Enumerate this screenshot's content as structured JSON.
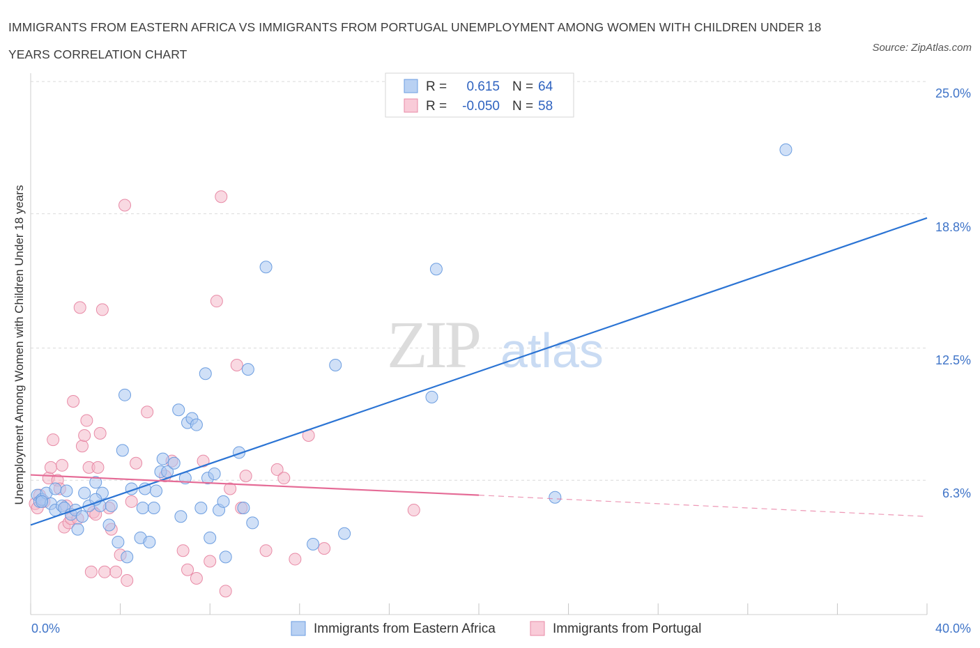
{
  "title": "IMMIGRANTS FROM EASTERN AFRICA VS IMMIGRANTS FROM PORTUGAL UNEMPLOYMENT AMONG WOMEN WITH CHILDREN UNDER 18 YEARS CORRELATION CHART",
  "source": "Source: ZipAtlas.com",
  "watermark": {
    "zip": "ZIP",
    "atlas": "atlas"
  },
  "colors": {
    "blue_fill": "#a9c6f0",
    "blue_stroke": "#6b9de0",
    "blue_line": "#2b74d4",
    "pink_fill": "#f4b9cb",
    "pink_stroke": "#e88aa6",
    "pink_line": "#e56b96",
    "grid": "#d9d9d9",
    "axis_text": "#3f74c8"
  },
  "legend": {
    "rows": [
      {
        "r_label": "R =",
        "r_value": "0.615",
        "n_label": "N =",
        "n_value": "64"
      },
      {
        "r_label": "R =",
        "r_value": "-0.050",
        "n_label": "N =",
        "n_value": "58"
      }
    ]
  },
  "chart_data": {
    "type": "scatter",
    "xlabel": "",
    "ylabel": "Unemployment Among Women with Children Under 18 years",
    "xlim": [
      0,
      40
    ],
    "ylim": [
      0,
      25
    ],
    "x_tick_labels": [
      "0.0%",
      "40.0%"
    ],
    "y_ticks": [
      6.3,
      12.5,
      18.8,
      25.0
    ],
    "y_tick_labels": [
      "6.3%",
      "12.5%",
      "18.8%",
      "25.0%"
    ],
    "grid": true,
    "legend_position": "top-center",
    "series": [
      {
        "name": "Immigrants from Eastern Africa",
        "points": [
          [
            0.3,
            5.6
          ],
          [
            0.4,
            5.3
          ],
          [
            0.5,
            5.4
          ],
          [
            0.7,
            5.7
          ],
          [
            0.9,
            5.2
          ],
          [
            1.1,
            5.9
          ],
          [
            1.1,
            4.9
          ],
          [
            1.4,
            5.1
          ],
          [
            1.6,
            5.8
          ],
          [
            1.5,
            5.0
          ],
          [
            1.8,
            4.7
          ],
          [
            2.0,
            4.9
          ],
          [
            2.1,
            4.0
          ],
          [
            2.3,
            4.6
          ],
          [
            2.4,
            5.7
          ],
          [
            2.6,
            5.1
          ],
          [
            2.9,
            6.2
          ],
          [
            3.1,
            5.1
          ],
          [
            3.2,
            5.7
          ],
          [
            3.5,
            4.2
          ],
          [
            3.6,
            5.1
          ],
          [
            3.9,
            3.4
          ],
          [
            4.1,
            7.7
          ],
          [
            4.2,
            10.3
          ],
          [
            4.3,
            2.7
          ],
          [
            4.5,
            5.9
          ],
          [
            4.9,
            3.6
          ],
          [
            5.0,
            5.0
          ],
          [
            5.1,
            5.9
          ],
          [
            5.3,
            3.4
          ],
          [
            5.5,
            5.0
          ],
          [
            5.6,
            5.8
          ],
          [
            5.8,
            6.7
          ],
          [
            5.9,
            7.3
          ],
          [
            6.1,
            6.7
          ],
          [
            6.4,
            7.1
          ],
          [
            6.6,
            9.6
          ],
          [
            6.7,
            4.6
          ],
          [
            6.9,
            6.4
          ],
          [
            7.0,
            9.0
          ],
          [
            7.2,
            9.2
          ],
          [
            7.4,
            8.9
          ],
          [
            7.6,
            5.0
          ],
          [
            7.8,
            11.3
          ],
          [
            7.9,
            6.4
          ],
          [
            8.0,
            3.6
          ],
          [
            8.2,
            6.6
          ],
          [
            8.4,
            4.9
          ],
          [
            8.6,
            5.3
          ],
          [
            8.7,
            2.7
          ],
          [
            9.3,
            7.6
          ],
          [
            9.5,
            5.0
          ],
          [
            9.7,
            11.5
          ],
          [
            9.9,
            4.3
          ],
          [
            10.5,
            16.3
          ],
          [
            12.6,
            3.3
          ],
          [
            13.6,
            11.7
          ],
          [
            14.0,
            3.8
          ],
          [
            17.9,
            10.2
          ],
          [
            18.1,
            16.2
          ],
          [
            23.4,
            5.5
          ],
          [
            33.7,
            21.8
          ],
          [
            0.5,
            5.3
          ],
          [
            2.9,
            5.4
          ]
        ],
        "trend": {
          "x": [
            0,
            40
          ],
          "y": [
            4.2,
            18.6
          ]
        }
      },
      {
        "name": "Immigrants from Portugal",
        "points": [
          [
            0.2,
            5.2
          ],
          [
            0.4,
            5.6
          ],
          [
            0.6,
            5.3
          ],
          [
            0.8,
            6.4
          ],
          [
            0.9,
            6.9
          ],
          [
            1.0,
            8.2
          ],
          [
            1.2,
            6.3
          ],
          [
            1.3,
            5.9
          ],
          [
            1.4,
            7.0
          ],
          [
            1.5,
            4.1
          ],
          [
            1.7,
            4.3
          ],
          [
            1.8,
            4.5
          ],
          [
            1.9,
            10.0
          ],
          [
            2.1,
            4.5
          ],
          [
            2.2,
            14.4
          ],
          [
            2.3,
            7.9
          ],
          [
            2.4,
            8.4
          ],
          [
            2.5,
            9.1
          ],
          [
            2.6,
            6.9
          ],
          [
            2.7,
            2.0
          ],
          [
            2.8,
            4.8
          ],
          [
            3.0,
            6.9
          ],
          [
            3.1,
            8.5
          ],
          [
            3.2,
            14.3
          ],
          [
            3.3,
            2.0
          ],
          [
            3.5,
            5.0
          ],
          [
            3.6,
            4.0
          ],
          [
            3.8,
            2.0
          ],
          [
            4.0,
            2.8
          ],
          [
            4.2,
            19.2
          ],
          [
            4.3,
            1.6
          ],
          [
            4.5,
            5.3
          ],
          [
            4.7,
            7.1
          ],
          [
            5.2,
            9.5
          ],
          [
            6.0,
            6.5
          ],
          [
            6.3,
            7.2
          ],
          [
            6.8,
            3.0
          ],
          [
            7.0,
            2.1
          ],
          [
            7.4,
            1.7
          ],
          [
            7.7,
            7.2
          ],
          [
            8.0,
            2.5
          ],
          [
            8.3,
            14.7
          ],
          [
            8.5,
            19.6
          ],
          [
            8.7,
            1.1
          ],
          [
            8.9,
            5.9
          ],
          [
            9.2,
            11.7
          ],
          [
            9.4,
            5.0
          ],
          [
            9.6,
            6.5
          ],
          [
            10.5,
            3.0
          ],
          [
            11.0,
            6.8
          ],
          [
            11.3,
            6.4
          ],
          [
            11.8,
            2.6
          ],
          [
            12.4,
            8.4
          ],
          [
            13.1,
            3.1
          ],
          [
            17.1,
            4.9
          ],
          [
            0.3,
            5.0
          ],
          [
            1.6,
            5.1
          ],
          [
            2.9,
            4.7
          ]
        ],
        "trend_solid": {
          "x": [
            0,
            20
          ],
          "y": [
            6.55,
            5.6
          ]
        },
        "trend_dashed": {
          "x": [
            20,
            40
          ],
          "y": [
            5.6,
            4.6
          ]
        }
      }
    ]
  }
}
